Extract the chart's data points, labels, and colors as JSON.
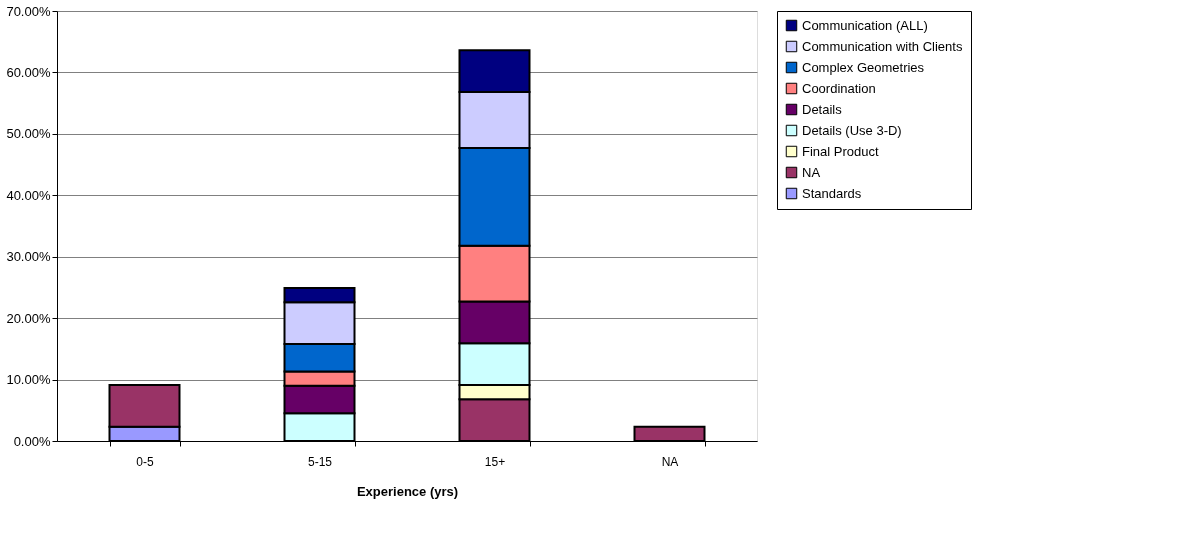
{
  "chart_data": {
    "type": "bar",
    "stacked": true,
    "xlabel": "Experience (yrs)",
    "categories": [
      "0-5",
      "5-15",
      "15+",
      "NA"
    ],
    "series": [
      {
        "name": "Standards",
        "color": "#9999ff",
        "values": [
          2.3,
          null,
          null,
          null
        ]
      },
      {
        "name": "NA",
        "color": "#993366",
        "values": [
          6.8,
          null,
          6.8,
          2.3
        ]
      },
      {
        "name": "Final Product",
        "color": "#ffffcc",
        "values": [
          null,
          null,
          2.3,
          null
        ]
      },
      {
        "name": "Details (Use 3-D)",
        "color": "#ccffff",
        "values": [
          null,
          4.5,
          6.8,
          null
        ]
      },
      {
        "name": "Details",
        "color": "#660066",
        "values": [
          null,
          4.5,
          6.8,
          null
        ]
      },
      {
        "name": "Coordination",
        "color": "#ff8080",
        "values": [
          null,
          2.3,
          9.1,
          null
        ]
      },
      {
        "name": "Complex Geometries",
        "color": "#0066cc",
        "values": [
          null,
          4.5,
          15.9,
          null
        ]
      },
      {
        "name": "Communication with Clients",
        "color": "#ccccff",
        "values": [
          null,
          6.8,
          9.1,
          null
        ]
      },
      {
        "name": "Communication (ALL)",
        "color": "#000080",
        "values": [
          null,
          2.3,
          6.8,
          null
        ]
      }
    ],
    "ylim": [
      0,
      70
    ],
    "yticks": [
      {
        "value": 0,
        "label": "0.00%"
      },
      {
        "value": 10,
        "label": "10.00%"
      },
      {
        "value": 20,
        "label": "20.00%"
      },
      {
        "value": 30,
        "label": "30.00%"
      },
      {
        "value": 40,
        "label": "40.00%"
      },
      {
        "value": 50,
        "label": "50.00%"
      },
      {
        "value": 60,
        "label": "60.00%"
      },
      {
        "value": 70,
        "label": "70.00%"
      }
    ],
    "grid": "y",
    "legend": "right"
  }
}
